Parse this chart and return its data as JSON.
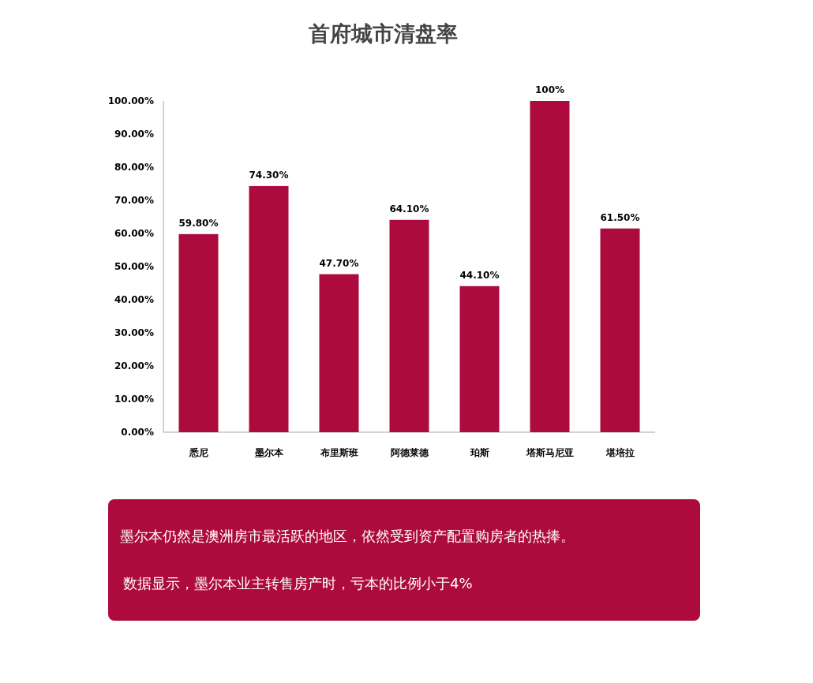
{
  "chart_data": {
    "type": "bar",
    "title": "首府城市清盘率",
    "categories": [
      "悉尼",
      "墨尔本",
      "布里斯班",
      "阿德莱德",
      "珀斯",
      "塔斯马尼亚",
      "堪培拉"
    ],
    "values": [
      59.8,
      74.3,
      47.7,
      64.1,
      44.1,
      100,
      61.5
    ],
    "value_labels": [
      "59.80%",
      "74.30%",
      "47.70%",
      "64.10%",
      "44.10%",
      "100%",
      "61.50%"
    ],
    "color": "#ad0a3e",
    "ylim": [
      0,
      100
    ],
    "yticks": [
      {
        "value": 0,
        "label": "0.00%"
      },
      {
        "value": 10,
        "label": "10.00%"
      },
      {
        "value": 20,
        "label": "20.00%"
      },
      {
        "value": 30,
        "label": "30.00%"
      },
      {
        "value": 40,
        "label": "40.00%"
      },
      {
        "value": 50,
        "label": "50.00%"
      },
      {
        "value": 60,
        "label": "60.00%"
      },
      {
        "value": 70,
        "label": "70.00%"
      },
      {
        "value": 80,
        "label": "80.00%"
      },
      {
        "value": 90,
        "label": "90.00%"
      },
      {
        "value": 100,
        "label": "100.00%"
      }
    ],
    "grid": false,
    "annotations": [
      "墨尔本仍然是澳洲房市最活跃的地区，依然受到资产配置购房者的热捧。",
      "数据显示，墨尔本业主转售房产时，亏本的比例小于4%"
    ]
  }
}
